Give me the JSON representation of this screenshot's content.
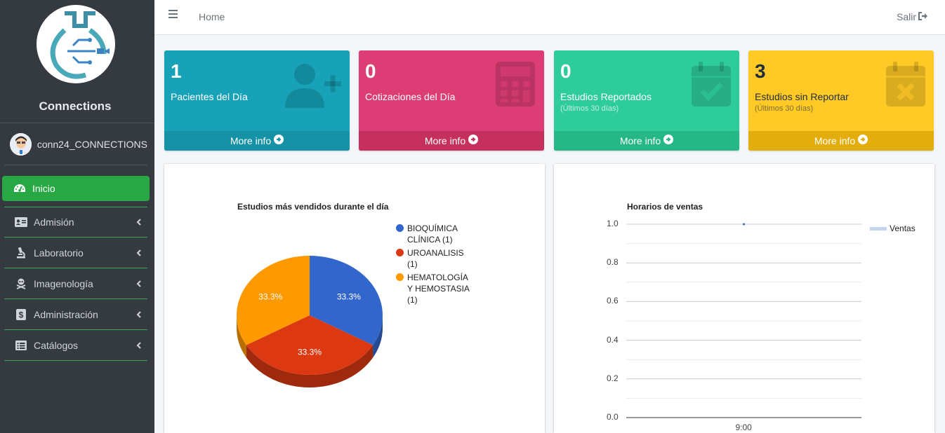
{
  "sidebar": {
    "brand": "Connections",
    "user": "conn24_CONNECTIONS",
    "items": [
      {
        "label": "Inicio"
      },
      {
        "label": "Admisión"
      },
      {
        "label": "Laboratorio"
      },
      {
        "label": "Imagenología"
      },
      {
        "label": "Administración"
      },
      {
        "label": "Catálogos"
      }
    ]
  },
  "header": {
    "home": "Home",
    "logout": "Salir"
  },
  "boxes": [
    {
      "number": "1",
      "label": "Pacientes del Día",
      "sub": "",
      "more": "More info",
      "color": "#17a2b8"
    },
    {
      "number": "0",
      "label": "Cotizaciones del Día",
      "sub": "",
      "more": "More info",
      "color": "#dc3d74"
    },
    {
      "number": "0",
      "label": "Estudios Reportados",
      "sub": "(Últimos 30 días)",
      "more": "More info",
      "color": "#2ecc9a"
    },
    {
      "number": "3",
      "label": "Estudios sin Reportar",
      "sub": "(Últimos 30 días)",
      "more": "More info",
      "color": "#ffc107"
    }
  ],
  "chart_data": [
    {
      "type": "pie",
      "title": "Estudios más vendidos durante el día",
      "categories": [
        "BIOQUÍMICA CLÍNICA (1)",
        "UROANALISIS (1)",
        "HEMATOLOGÍA Y HEMOSTASIA (1)"
      ],
      "legend_lines": [
        [
          "BIOQUÍMICA",
          "CLÍNICA (1)"
        ],
        [
          "UROANALISIS",
          "(1)"
        ],
        [
          "HEMATOLOGÍA",
          "Y HEMOSTASIA",
          "(1)"
        ]
      ],
      "values": [
        1,
        1,
        1
      ],
      "percent_labels": [
        "33.3%",
        "33.3%",
        "33.3%"
      ],
      "colors": [
        "#3366cc",
        "#dc3912",
        "#ff9900"
      ],
      "legend": "right"
    },
    {
      "type": "line",
      "title": "Horarios de ventas",
      "x": [
        "9:00"
      ],
      "series": [
        {
          "name": "Ventas",
          "values": [
            1.0
          ]
        }
      ],
      "yticks": [
        "0.0",
        "0.2",
        "0.4",
        "0.6",
        "0.8",
        "1.0"
      ],
      "ylim": [
        0,
        1
      ],
      "grid": true,
      "legend": "right",
      "color": "#3366cc"
    }
  ]
}
